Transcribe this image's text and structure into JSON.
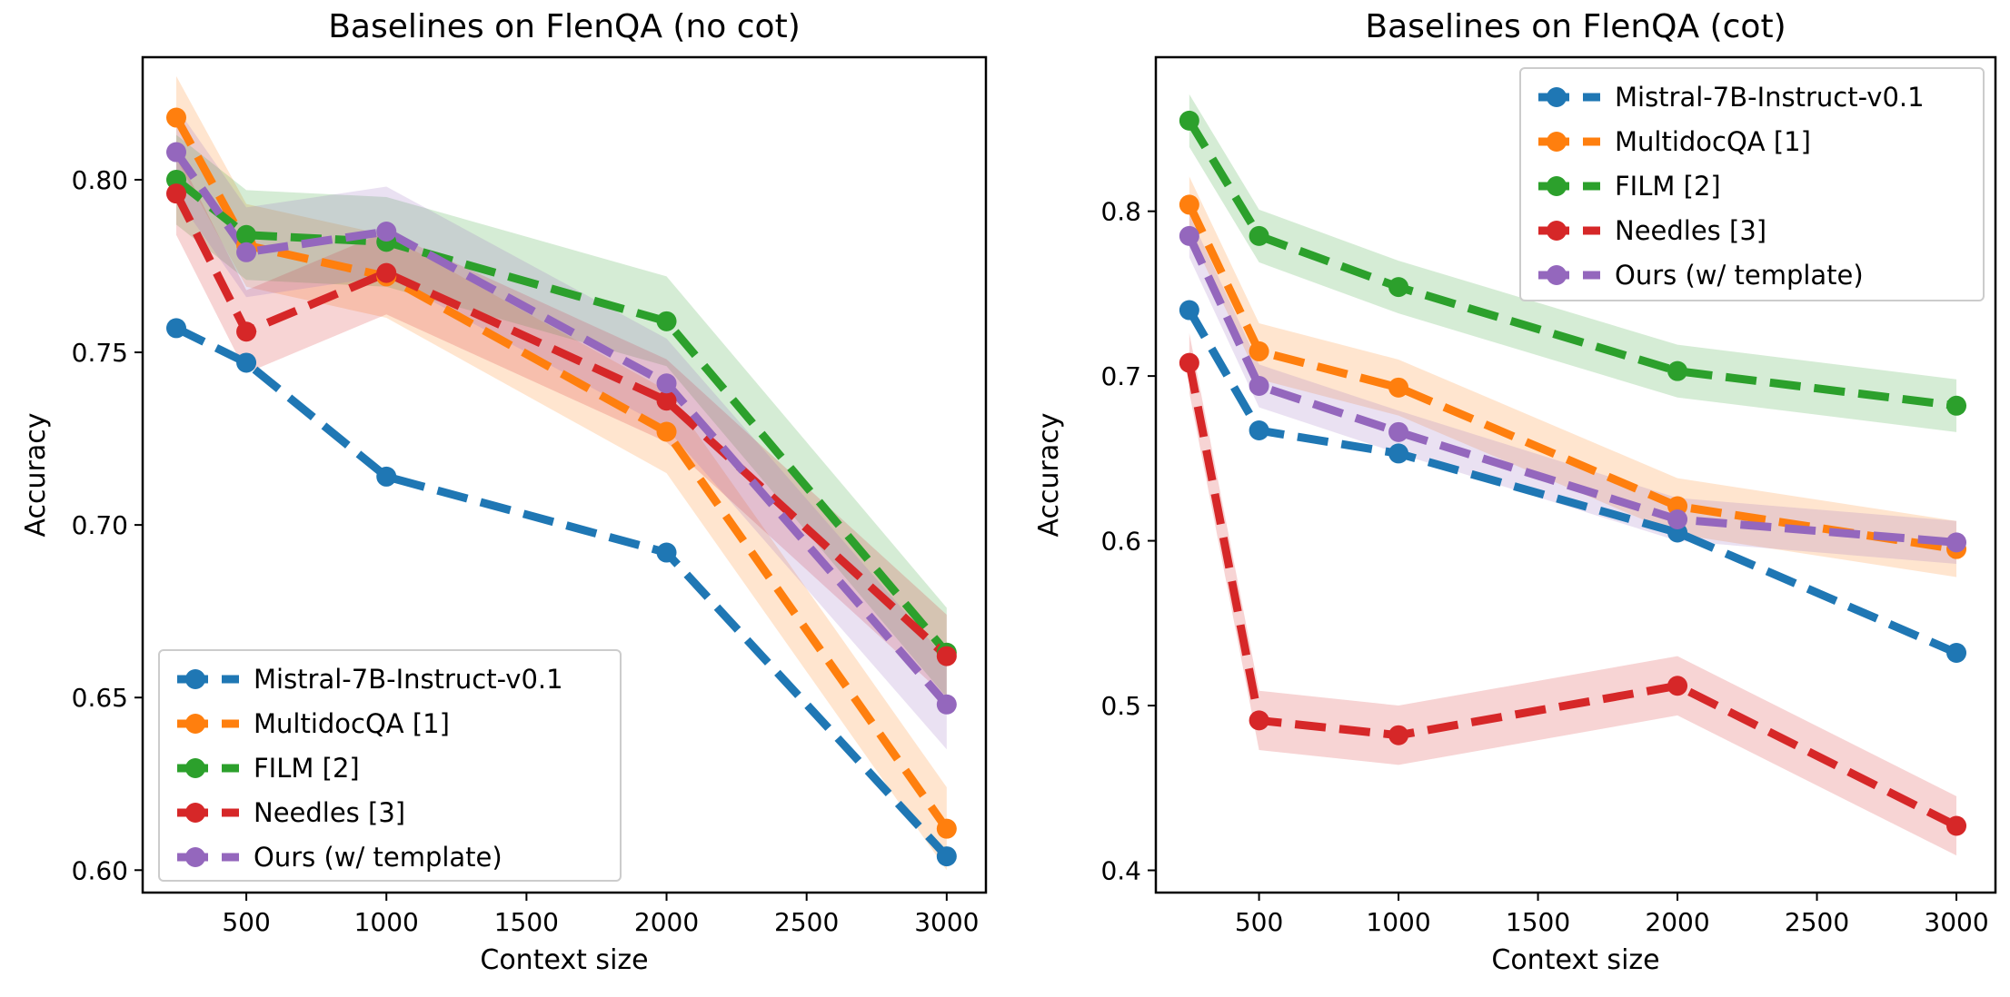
{
  "chart_data": [
    {
      "type": "line",
      "title": "Baselines on FlenQA (no cot)",
      "xlabel": "Context size",
      "ylabel": "Accuracy",
      "x": [
        250,
        500,
        1000,
        2000,
        3000
      ],
      "xlim": [
        130,
        3140
      ],
      "ylim": [
        0.5935,
        0.8355
      ],
      "xticks": [
        500,
        1000,
        1500,
        2000,
        2500,
        3000
      ],
      "yticks": [
        0.6,
        0.65,
        0.7,
        0.75,
        0.8
      ],
      "ytick_labels": [
        "0.60",
        "0.65",
        "0.70",
        "0.75",
        "0.80"
      ],
      "legend_position": "lower-left",
      "series": [
        {
          "name": "Mistral-7B-Instruct-v0.1",
          "color": "#1f77b4",
          "values": [
            0.757,
            0.747,
            0.714,
            0.692,
            0.604
          ],
          "band": 0.0
        },
        {
          "name": "MultidocQA [1]",
          "color": "#ff7f0e",
          "values": [
            0.818,
            0.781,
            0.772,
            0.727,
            0.612
          ],
          "band": 0.012
        },
        {
          "name": "FILM [2]",
          "color": "#2ca02c",
          "values": [
            0.8,
            0.784,
            0.782,
            0.759,
            0.663
          ],
          "band": 0.013
        },
        {
          "name": "Needles [3]",
          "color": "#d62728",
          "values": [
            0.796,
            0.756,
            0.773,
            0.736,
            0.662
          ],
          "band": 0.012
        },
        {
          "name": "Ours (w/ template)",
          "color": "#9467bd",
          "values": [
            0.808,
            0.779,
            0.785,
            0.741,
            0.648
          ],
          "band": 0.013
        }
      ]
    },
    {
      "type": "line",
      "title": "Baselines on FlenQA (cot)",
      "xlabel": "Context size",
      "ylabel": "Accuracy",
      "x": [
        250,
        500,
        1000,
        2000,
        3000
      ],
      "xlim": [
        130,
        3140
      ],
      "ylim": [
        0.3865,
        0.8935
      ],
      "xticks": [
        500,
        1000,
        1500,
        2000,
        2500,
        3000
      ],
      "yticks": [
        0.4,
        0.5,
        0.6,
        0.7,
        0.8
      ],
      "ytick_labels": [
        "0.4",
        "0.5",
        "0.6",
        "0.7",
        "0.8"
      ],
      "legend_position": "upper-right",
      "series": [
        {
          "name": "Mistral-7B-Instruct-v0.1",
          "color": "#1f77b4",
          "values": [
            0.74,
            0.667,
            0.653,
            0.605,
            0.532
          ],
          "band": 0.0
        },
        {
          "name": "MultidocQA [1]",
          "color": "#ff7f0e",
          "values": [
            0.804,
            0.715,
            0.693,
            0.621,
            0.595
          ],
          "band": 0.017
        },
        {
          "name": "FILM [2]",
          "color": "#2ca02c",
          "values": [
            0.855,
            0.785,
            0.754,
            0.703,
            0.682
          ],
          "band": 0.016
        },
        {
          "name": "Needles [3]",
          "color": "#d62728",
          "values": [
            0.708,
            0.491,
            0.482,
            0.512,
            0.427
          ],
          "band": 0.018
        },
        {
          "name": "Ours (w/ template)",
          "color": "#9467bd",
          "values": [
            0.785,
            0.694,
            0.666,
            0.613,
            0.599
          ],
          "band": 0.013
        }
      ]
    }
  ]
}
